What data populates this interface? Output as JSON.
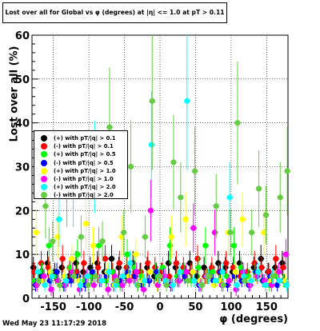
{
  "title": "Lost over all for Global vs φ (degrees) at |η| <= 1.0 at pT > 0.11",
  "footer_date": "Wed May 23 11:17:29 2018",
  "chart_data": {
    "type": "scatter",
    "title": "Lost over all for Global vs φ (degrees) at |η| <= 1.0 at pT > 0.11",
    "xlabel": "φ (degrees)",
    "ylabel": "Lost over all (%)",
    "xlim": [
      -180,
      180
    ],
    "ylim": [
      0,
      60
    ],
    "x_ticks": [
      -150,
      -100,
      -50,
      0,
      50,
      100,
      150
    ],
    "y_ticks": [
      0,
      10,
      20,
      30,
      40,
      50,
      60
    ],
    "grid": true,
    "legend_position": "left-middle",
    "series": [
      {
        "name": "(+) with pT/|q| > 0.1",
        "color": "#000000",
        "x": [
          -175,
          -165,
          -155,
          -145,
          -135,
          -125,
          -115,
          -105,
          -95,
          -85,
          -75,
          -65,
          -55,
          -45,
          -35,
          -25,
          -15,
          -5,
          5,
          15,
          25,
          35,
          45,
          55,
          65,
          75,
          85,
          95,
          105,
          115,
          125,
          135,
          145,
          155,
          165,
          175
        ],
        "y": [
          7,
          5,
          8,
          6,
          7,
          5,
          8,
          6,
          7,
          8,
          6,
          9,
          7,
          5,
          8,
          6,
          7,
          5,
          6,
          8,
          7,
          6,
          8,
          5,
          7,
          6,
          8,
          7,
          6,
          8,
          5,
          7,
          9,
          6,
          7,
          8
        ]
      },
      {
        "name": "(-) with pT/|q| > 0.1",
        "color": "#ff0000",
        "x": [
          -175,
          -165,
          -155,
          -145,
          -135,
          -125,
          -115,
          -105,
          -95,
          -85,
          -75,
          -65,
          -55,
          -45,
          -35,
          -25,
          -15,
          -5,
          5,
          15,
          25,
          35,
          45,
          55,
          65,
          75,
          85,
          95,
          105,
          115,
          125,
          135,
          145,
          155,
          165,
          175
        ],
        "y": [
          6,
          8,
          7,
          5,
          9,
          7,
          6,
          8,
          5,
          7,
          9,
          6,
          8,
          7,
          5,
          6,
          8,
          7,
          6,
          5,
          8,
          7,
          6,
          9,
          5,
          7,
          6,
          8,
          7,
          5,
          6,
          8,
          7,
          6,
          9,
          7
        ]
      },
      {
        "name": "(+) with pT/|q| > 0.5",
        "color": "#00ff00",
        "x": [
          -175,
          -165,
          -155,
          -145,
          -135,
          -125,
          -115,
          -105,
          -95,
          -85,
          -75,
          -65,
          -55,
          -45,
          -35,
          -25,
          -15,
          -5,
          5,
          15,
          25,
          35,
          45,
          55,
          65,
          75,
          85,
          95,
          105,
          115,
          125,
          135,
          145,
          155,
          165,
          175
        ],
        "y": [
          4,
          6,
          12,
          5,
          3,
          7,
          10,
          4,
          5,
          12,
          4,
          6,
          3,
          10,
          7,
          5,
          4,
          6,
          7,
          12,
          5,
          6,
          4,
          7,
          12,
          6,
          4,
          5,
          12,
          7,
          5,
          6,
          4,
          3,
          5,
          4
        ]
      },
      {
        "name": "(-) with pT/|q| > 0.5",
        "color": "#0000ff",
        "x": [
          -175,
          -165,
          -155,
          -145,
          -135,
          -125,
          -115,
          -105,
          -95,
          -85,
          -75,
          -65,
          -55,
          -45,
          -35,
          -25,
          -15,
          -5,
          5,
          15,
          25,
          35,
          45,
          55,
          65,
          75,
          85,
          95,
          105,
          115,
          125,
          135,
          145,
          155,
          165,
          175
        ],
        "y": [
          3,
          5,
          4,
          6,
          3,
          4,
          5,
          3,
          6,
          4,
          5,
          3,
          4,
          6,
          5,
          3,
          4,
          6,
          5,
          3,
          4,
          5,
          6,
          3,
          5,
          4,
          6,
          3,
          5,
          4,
          3,
          6,
          4,
          5,
          3,
          4
        ]
      },
      {
        "name": "(+) with pT/|q| > 1.0",
        "color": "#ffff00",
        "x": [
          -175,
          -165,
          -155,
          -145,
          -135,
          -125,
          -115,
          -105,
          -95,
          -85,
          -75,
          -65,
          -55,
          -45,
          -35,
          -25,
          -15,
          -5,
          5,
          15,
          25,
          35,
          45,
          55,
          65,
          75,
          85,
          95,
          105,
          115,
          125,
          135,
          145,
          155,
          165,
          175
        ],
        "y": [
          15,
          4,
          6,
          14,
          5,
          9,
          4,
          17,
          12,
          4,
          6,
          3,
          14,
          5,
          10,
          4,
          6,
          3,
          5,
          14,
          4,
          18,
          6,
          4,
          5,
          3,
          4,
          15,
          6,
          18,
          4,
          5,
          15,
          4,
          6,
          4
        ]
      },
      {
        "name": "(-) with pT/|q| > 1.0",
        "color": "#ff00ff",
        "x": [
          -175,
          -165,
          -155,
          -145,
          -135,
          -125,
          -115,
          -105,
          -95,
          -85,
          -75,
          -65,
          -55,
          -45,
          -35,
          -25,
          -15,
          -5,
          5,
          15,
          25,
          35,
          45,
          55,
          65,
          75,
          85,
          95,
          105,
          115,
          125,
          135,
          145,
          155,
          165,
          175
        ],
        "y": [
          3,
          5,
          2,
          4,
          3,
          6,
          2,
          5,
          3,
          4,
          2,
          5,
          3,
          4,
          6,
          2,
          20,
          3,
          5,
          3,
          4,
          6,
          16,
          3,
          5,
          15,
          3,
          4,
          2,
          6,
          3,
          5,
          4,
          3,
          6,
          10
        ]
      },
      {
        "name": "(+) with pT/|q| > 2.0",
        "color": "#00ffff",
        "x": [
          -175,
          -165,
          -155,
          -145,
          -135,
          -125,
          -115,
          -105,
          -95,
          -85,
          -75,
          -65,
          -55,
          -45,
          -35,
          -25,
          -15,
          -5,
          5,
          15,
          25,
          35,
          45,
          55,
          65,
          75,
          85,
          95,
          105,
          115,
          125,
          135,
          145,
          155,
          165,
          175
        ],
        "y": [
          6,
          3,
          5,
          18,
          4,
          25,
          3,
          5,
          30,
          4,
          6,
          3,
          5,
          8,
          3,
          4,
          35,
          5,
          4,
          3,
          6,
          45,
          4,
          3,
          5,
          4,
          6,
          23,
          3,
          5,
          4,
          6,
          3,
          5,
          4,
          3
        ]
      },
      {
        "name": "(-) with pT/|q| > 2.0",
        "color": "#66cc44",
        "x": [
          -175,
          -165,
          -155,
          -145,
          -135,
          -125,
          -115,
          -105,
          -95,
          -85,
          -75,
          -65,
          -55,
          -45,
          -35,
          -25,
          -15,
          -5,
          5,
          15,
          25,
          35,
          45,
          55,
          65,
          75,
          85,
          95,
          105,
          115,
          125,
          135,
          145,
          155,
          165,
          175
        ],
        "y": [
          4,
          21,
          13,
          3,
          25,
          5,
          14,
          3,
          5,
          13,
          39,
          4,
          15,
          30,
          3,
          14,
          45,
          5,
          3,
          31,
          23,
          4,
          29,
          3,
          5,
          21,
          3,
          15,
          40,
          4,
          15,
          25,
          19,
          5,
          23,
          29
        ]
      }
    ]
  }
}
